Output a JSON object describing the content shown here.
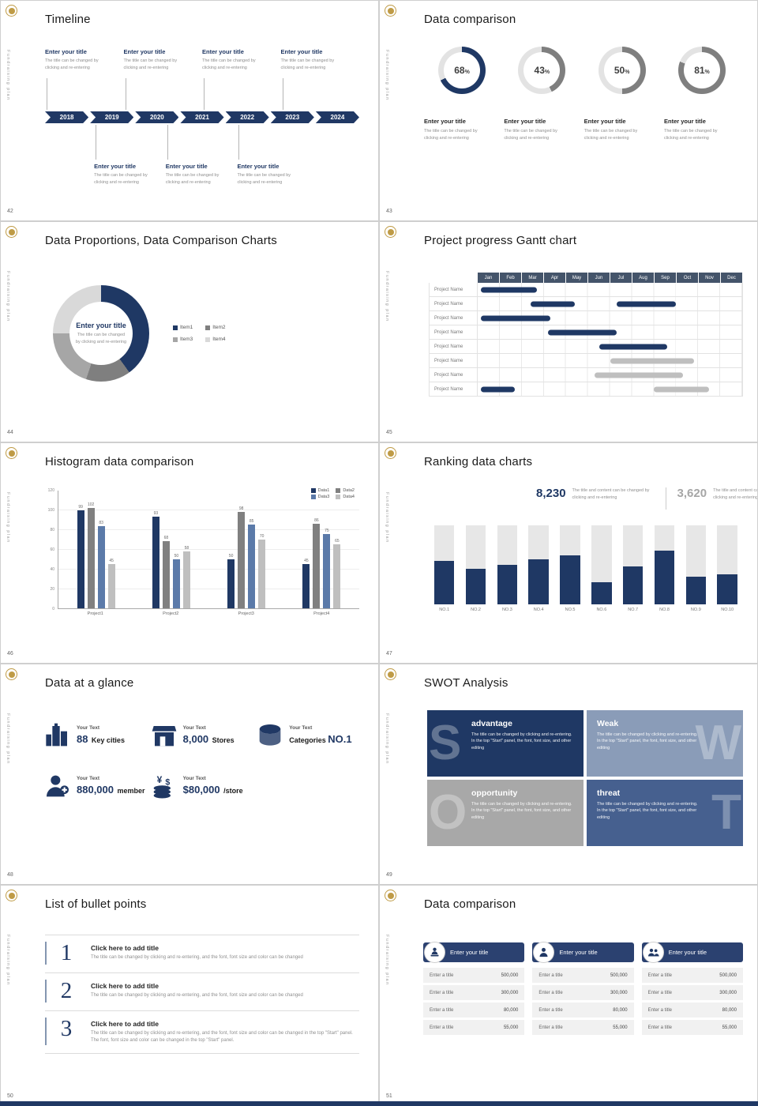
{
  "deck": {
    "side_text": "Fundraising plan",
    "colors": {
      "navy": "#1f3864",
      "slate": "#44546a",
      "steel_blue": "#8a9cb8",
      "gray": "#808080",
      "light_gray": "#bfbfbf"
    }
  },
  "slides": {
    "timeline": {
      "page": "42",
      "title": "Timeline",
      "years": [
        "2018",
        "2019",
        "2020",
        "2021",
        "2022",
        "2023",
        "2024"
      ],
      "top_entries": [
        {
          "title": "Enter your title",
          "desc": "The title can be changed by clicking and re-entering"
        },
        {
          "title": "Enter your title",
          "desc": "The title can be changed by clicking and re-entering"
        },
        {
          "title": "Enter your title",
          "desc": "The title can be changed by clicking and re-entering"
        },
        {
          "title": "Enter your title",
          "desc": "The title can be changed by clicking and re-entering"
        }
      ],
      "bottom_entries": [
        {
          "title": "Enter your title",
          "desc": "The title can be changed by clicking and re-entering"
        },
        {
          "title": "Enter your title",
          "desc": "The title can be changed by clicking and re-entering"
        },
        {
          "title": "Enter your title",
          "desc": "The title can be changed by clicking and re-entering"
        }
      ]
    },
    "donuts": {
      "page": "43",
      "title": "Data comparison",
      "items": [
        {
          "percent": 68,
          "color": "#1f3864",
          "title": "Enter your title",
          "desc": "The title can be changed by clicking and re-entering"
        },
        {
          "percent": 43,
          "color": "#7f7f7f",
          "title": "Enter your title",
          "desc": "The title can be changed by clicking and re-entering"
        },
        {
          "percent": 50,
          "color": "#7f7f7f",
          "title": "Enter your title",
          "desc": "The title can be changed by clicking and re-entering"
        },
        {
          "percent": 81,
          "color": "#7f7f7f",
          "title": "Enter your title",
          "desc": "The title can be changed by clicking and re-entering"
        }
      ]
    },
    "pie": {
      "page": "44",
      "title": "Data Proportions, Data Comparison Charts",
      "center_title": "Enter your title",
      "center_desc": "The title can be changed by clicking and re-entering",
      "segments": [
        {
          "label": "Item1",
          "value": 40,
          "color": "#1f3864"
        },
        {
          "label": "Item2",
          "value": 15,
          "color": "#7f7f7f"
        },
        {
          "label": "Item3",
          "value": 20,
          "color": "#a6a6a6"
        },
        {
          "label": "Item4",
          "value": 25,
          "color": "#d9d9d9"
        }
      ]
    },
    "gantt": {
      "page": "45",
      "title": "Project progress Gantt chart",
      "months": [
        "Jan",
        "Feb",
        "Mar",
        "Apr",
        "May",
        "Jun",
        "Jul",
        "Aug",
        "Sep",
        "Oct",
        "Nov",
        "Dec"
      ],
      "row_label": "Project Name",
      "rows": 8,
      "bars": [
        {
          "row": 0,
          "start": 0.15,
          "end": 2.7,
          "color": "#1f3864"
        },
        {
          "row": 1,
          "start": 2.4,
          "end": 4.4,
          "color": "#1f3864"
        },
        {
          "row": 1,
          "start": 6.3,
          "end": 9.0,
          "color": "#1f3864"
        },
        {
          "row": 2,
          "start": 0.15,
          "end": 3.3,
          "color": "#1f3864"
        },
        {
          "row": 3,
          "start": 3.2,
          "end": 6.3,
          "color": "#1f3864"
        },
        {
          "row": 4,
          "start": 5.5,
          "end": 8.6,
          "color": "#1f3864"
        },
        {
          "row": 5,
          "start": 6.0,
          "end": 9.8,
          "color": "#bfbfbf"
        },
        {
          "row": 6,
          "start": 5.3,
          "end": 9.3,
          "color": "#bfbfbf"
        },
        {
          "row": 7,
          "start": 0.15,
          "end": 1.7,
          "color": "#1f3864"
        },
        {
          "row": 7,
          "start": 8.0,
          "end": 10.5,
          "color": "#bfbfbf"
        }
      ]
    },
    "histogram": {
      "page": "46",
      "title": "Histogram data comparison",
      "chart": {
        "type": "bar",
        "categories": [
          "Project1",
          "Project2",
          "Project3",
          "Project4"
        ],
        "y_ticks": [
          0,
          20,
          40,
          60,
          80,
          100,
          120
        ],
        "y_max": 120,
        "series": [
          {
            "name": "Data1",
            "color": "#1f3864",
            "values": [
              99,
              93,
              50,
              45
            ]
          },
          {
            "name": "Data2",
            "color": "#808080",
            "values": [
              102,
              68,
              98,
              86
            ]
          },
          {
            "name": "Data3",
            "color": "#5b7aa9",
            "values": [
              83,
              50,
              85,
              75
            ]
          },
          {
            "name": "Data4",
            "color": "#bfbfbf",
            "values": [
              45,
              58,
              70,
              65
            ]
          }
        ]
      }
    },
    "ranking": {
      "page": "47",
      "title": "Ranking data charts",
      "stats": [
        {
          "value": "8,230",
          "color": "#1f3864",
          "desc": "The title and content can be changed by clicking and re-entering"
        },
        {
          "value": "3,620",
          "color": "#a6a6a6",
          "desc": "The title and content can be changed by clicking and re-entering"
        }
      ],
      "bars": {
        "type": "bar",
        "labels": [
          "NO.1",
          "NO.2",
          "NO.3",
          "NO.4",
          "NO.5",
          "NO.6",
          "NO.7",
          "NO.8",
          "NO.9",
          "NO.10"
        ],
        "fill_percent": [
          55,
          45,
          50,
          57,
          62,
          28,
          48,
          68,
          35,
          38
        ],
        "fill_color": "#1f3864",
        "track_color": "#e7e7e7"
      }
    },
    "glance": {
      "page": "48",
      "title": "Data at a glance",
      "items": [
        {
          "icon": "city-icon",
          "label": "Your Text",
          "value": "88",
          "unit": "Key cities",
          "unit_first": false
        },
        {
          "icon": "store-icon",
          "label": "Your Text",
          "value": "8,000",
          "unit": "Stores",
          "unit_first": false
        },
        {
          "icon": "categories-icon",
          "label": "Your Text",
          "value": "NO.1",
          "unit": "Categories",
          "unit_first": true
        },
        {
          "icon": "member-icon",
          "label": "Your Text",
          "value": "880,000",
          "unit": "member",
          "unit_first": false
        },
        {
          "icon": "coins-icon",
          "label": "Your Text",
          "value": "$80,000",
          "unit": "/store",
          "unit_first": false
        }
      ]
    },
    "swot": {
      "page": "49",
      "title": "SWOT Analysis",
      "quadrants": [
        {
          "letter": "S",
          "side": "left",
          "color": "#1f3864",
          "title": "advantage",
          "desc": "The title can be changed by clicking and re-entering. In the top \"Start\" panel, the font, font size, and other editing"
        },
        {
          "letter": "W",
          "side": "right",
          "color": "#8a9cb8",
          "title": "Weak",
          "desc": "The title can be changed by clicking and re-entering. In the top \"Start\" panel, the font, font size, and other editing"
        },
        {
          "letter": "O",
          "side": "left",
          "color": "#a8a8a8",
          "title": "opportunity",
          "desc": "The title can be changed by clicking and re-entering. In the top \"Start\" panel, the font, font size, and other editing"
        },
        {
          "letter": "T",
          "side": "right",
          "color": "#46608f",
          "title": "threat",
          "desc": "The title can be changed by clicking and re-entering. In the top \"Start\" panel, the font, font size, and other editing"
        }
      ]
    },
    "bullets": {
      "page": "50",
      "title": "List of bullet points",
      "items": [
        {
          "num": "1",
          "title": "Click here to add title",
          "desc": "The title can be changed by clicking and re-entering, and the font, font size and color can be changed"
        },
        {
          "num": "2",
          "title": "Click here to add title",
          "desc": "The title can be changed by clicking and re-entering, and the font, font size and color can be changed"
        },
        {
          "num": "3",
          "title": "Click here to add title",
          "desc": "The title can be changed by clicking and re-entering, and the font, font size and color can be changed in the top \"Start\" panel. The font, font size and color can be changed in the top \"Start\" panel."
        }
      ]
    },
    "cards": {
      "page": "51",
      "title": "Data comparison",
      "cards": [
        {
          "icon": "person-desk-icon",
          "header": "Enter your title",
          "rows": [
            [
              "Enter a title",
              "500,000"
            ],
            [
              "Enter a title",
              "300,000"
            ],
            [
              "Enter a title",
              "80,000"
            ],
            [
              "Enter a title",
              "55,000"
            ]
          ]
        },
        {
          "icon": "person-icon",
          "header": "Enter your title",
          "rows": [
            [
              "Enter a title",
              "500,000"
            ],
            [
              "Enter a title",
              "300,000"
            ],
            [
              "Enter a title",
              "80,000"
            ],
            [
              "Enter a title",
              "55,000"
            ]
          ]
        },
        {
          "icon": "people-icon",
          "header": "Enter your title",
          "rows": [
            [
              "Enter a title",
              "500,000"
            ],
            [
              "Enter a title",
              "300,000"
            ],
            [
              "Enter a title",
              "80,000"
            ],
            [
              "Enter a title",
              "55,000"
            ]
          ]
        }
      ]
    }
  }
}
